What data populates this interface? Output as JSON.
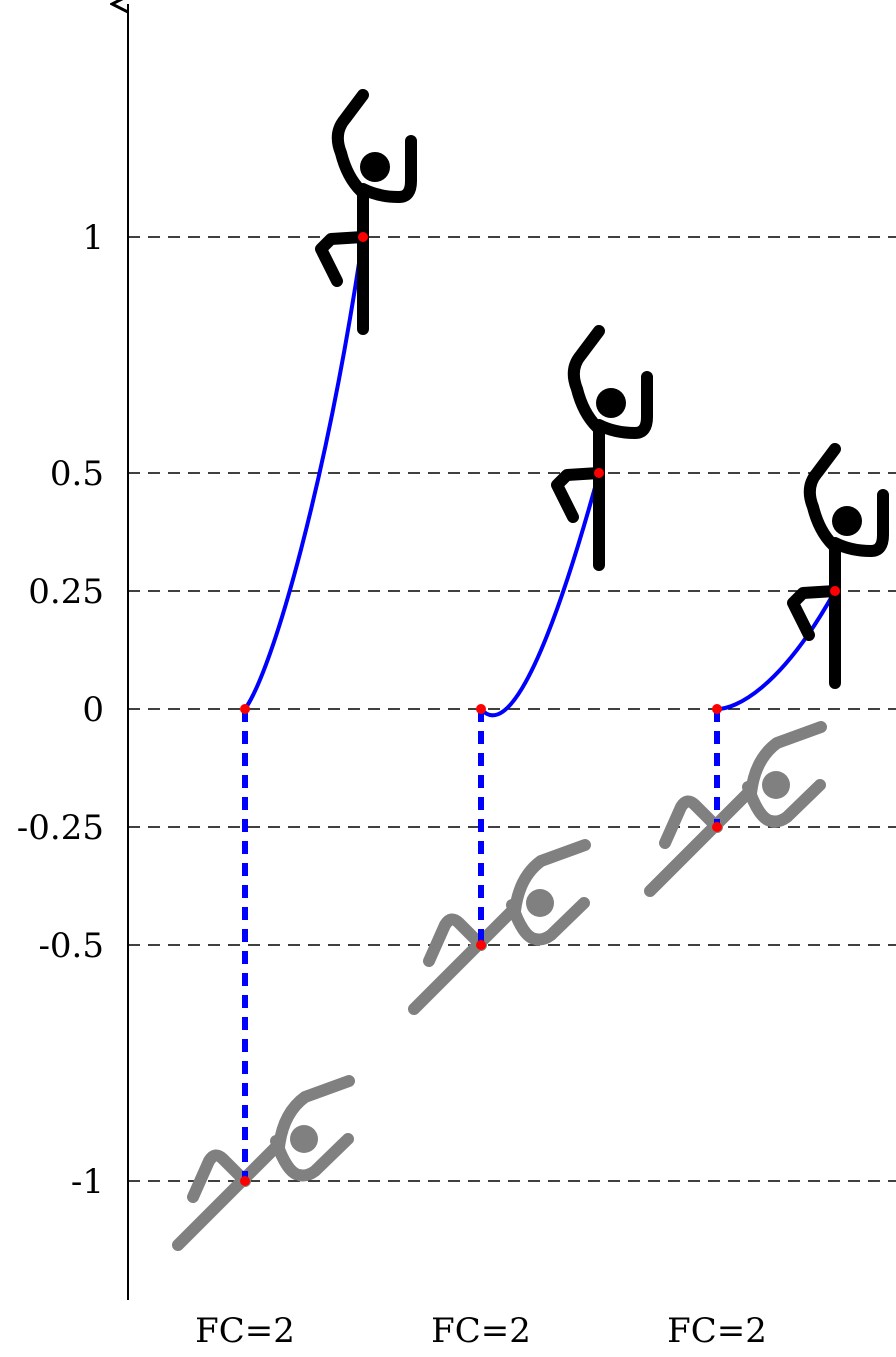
{
  "chart_data": {
    "type": "diagram",
    "y_ticks": [
      {
        "value": 1,
        "label": "1"
      },
      {
        "value": 0.5,
        "label": "0.5"
      },
      {
        "value": 0.25,
        "label": "0.25"
      },
      {
        "value": 0,
        "label": "0"
      },
      {
        "value": -0.25,
        "label": "-0.25"
      },
      {
        "value": -0.5,
        "label": "-0.5"
      },
      {
        "value": -1,
        "label": "-1"
      }
    ],
    "grid": true,
    "groups": [
      {
        "label": "FC=2",
        "low": -1,
        "high": 1
      },
      {
        "label": "FC=2",
        "low": -0.5,
        "high": 0.5
      },
      {
        "label": "FC=2",
        "low": -0.25,
        "high": 0.25
      }
    ],
    "colors": {
      "curve": "#0000ff",
      "points": "#ff0000",
      "climber_top": "#000000",
      "climber_bottom": "#808080",
      "grid": "#000000"
    },
    "icons": [
      "standing-stick-figure-icon",
      "lying-stick-figure-icon"
    ]
  }
}
